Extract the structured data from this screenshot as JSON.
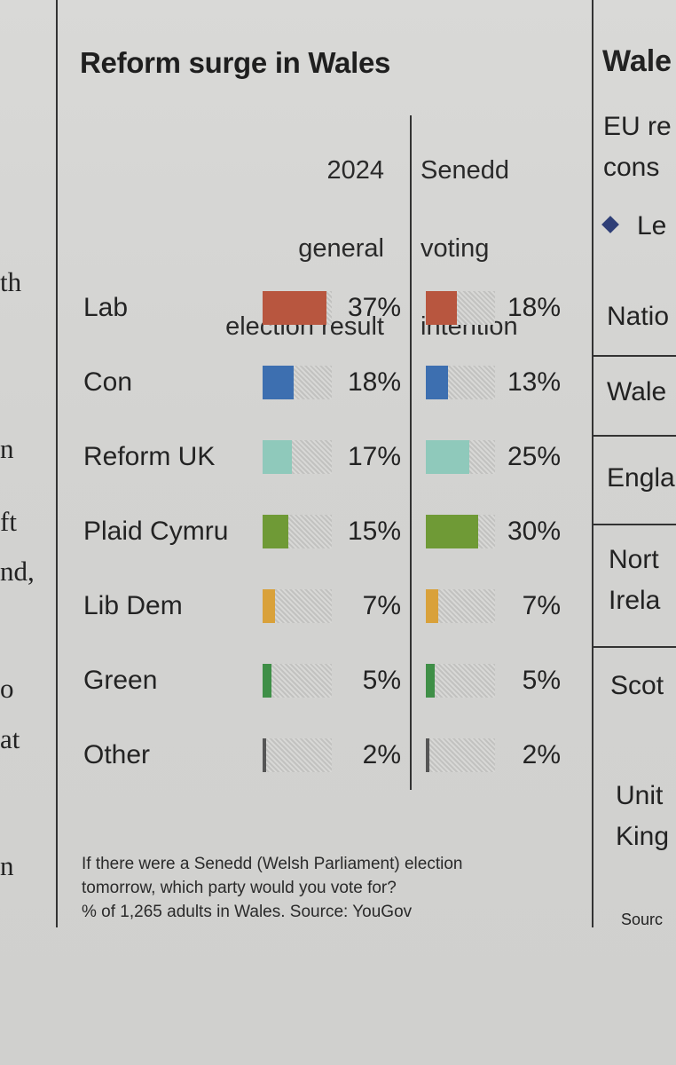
{
  "chart_data": {
    "type": "bar",
    "title": "Reform surge in Wales",
    "columns": [
      {
        "name": "2024 general election result",
        "lines": [
          "2024",
          "general",
          "election result"
        ]
      },
      {
        "name": "Senedd voting intention",
        "lines": [
          "Senedd",
          "voting",
          "intention"
        ]
      }
    ],
    "categories": [
      "Lab",
      "Con",
      "Reform UK",
      "Plaid Cymru",
      "Lib Dem",
      "Green",
      "Other"
    ],
    "series": [
      {
        "name": "2024 general election result",
        "values": [
          37,
          18,
          17,
          15,
          7,
          5,
          2
        ]
      },
      {
        "name": "Senedd voting intention",
        "values": [
          18,
          13,
          25,
          30,
          7,
          5,
          2
        ]
      }
    ],
    "labels_2024": [
      "37%",
      "18%",
      "17%",
      "15%",
      "7%",
      "5%",
      "2%"
    ],
    "labels_senedd": [
      "18%",
      "13%",
      "25%",
      "30%",
      "7%",
      "5%",
      "2%"
    ],
    "colors": [
      "#b8563f",
      "#3d6fb0",
      "#8fc9bb",
      "#6f9a36",
      "#d9a13a",
      "#3f8f47",
      "#555555"
    ],
    "ylim": [
      0,
      40
    ],
    "note": [
      "If there were a Senedd (Welsh Parliament) election",
      "tomorrow, which party would you vote for?",
      "% of 1,265 adults in Wales. Source: YouGov"
    ]
  },
  "left_column_fragments": [
    "th",
    "n",
    "ft",
    "nd,",
    "o",
    "at",
    "n"
  ],
  "right_column": {
    "title": "Wale",
    "subtitle_lines": [
      "EU re",
      "cons"
    ],
    "legend": "Le",
    "rows": [
      "Natio",
      "Wale",
      "Engla",
      "Nort",
      "Irela",
      "Scot",
      "Unit",
      "King"
    ],
    "source": "Sourc"
  }
}
